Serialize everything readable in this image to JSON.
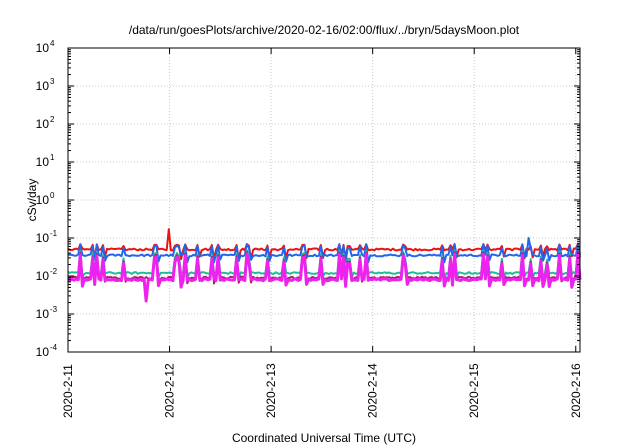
{
  "chart_data": {
    "type": "line",
    "title": "/data/run/goesPlots/archive/2020-02-16/02:00/flux/../bryn/5daysMoon.plot",
    "xlabel": "Coordinated Universal Time (UTC)",
    "ylabel": "cSv/day",
    "y_scale": "log",
    "ylim": [
      0.0001,
      10000
    ],
    "xlim": [
      "2020-02-11T00:00",
      "2020-02-16T01:00"
    ],
    "grid": true,
    "x_ticks": [
      "2020-2-11",
      "2020-2-12",
      "2020-2-13",
      "2020-2-14",
      "2020-2-15",
      "2020-2-16"
    ],
    "y_ticks": [
      {
        "base": "10",
        "exp": "-4",
        "value": 0.0001
      },
      {
        "base": "10",
        "exp": "-3",
        "value": 0.001
      },
      {
        "base": "10",
        "exp": "-2",
        "value": 0.01
      },
      {
        "base": "10",
        "exp": "-1",
        "value": 0.1
      },
      {
        "base": "10",
        "exp": "0",
        "value": 1
      },
      {
        "base": "10",
        "exp": "1",
        "value": 10
      },
      {
        "base": "10",
        "exp": "2",
        "value": 100
      },
      {
        "base": "10",
        "exp": "3",
        "value": 1000
      },
      {
        "base": "10",
        "exp": "4",
        "value": 10000
      }
    ],
    "series": [
      {
        "color": "#ee1111",
        "baseline": 0.05,
        "spike_peak": 0.07,
        "dip": 0.03,
        "width": 2
      },
      {
        "color": "#2266ee",
        "baseline": 0.035,
        "spike_peak": 0.07,
        "dip": 0.025,
        "width": 2
      },
      {
        "color": "#22bb99",
        "baseline": 0.012,
        "spike_peak": 0.05,
        "dip": 0.009,
        "width": 2
      },
      {
        "color": "#aa2266",
        "baseline": 0.009,
        "spike_peak": 0.045,
        "dip": 0.007,
        "width": 2
      },
      {
        "color": "#ee22ee",
        "baseline": 0.008,
        "spike_peak": 0.04,
        "dip": 0.0055,
        "width": 3
      }
    ],
    "notable_points": [
      {
        "x": "2020-02-11T18:40",
        "series_color": "#ee22ee",
        "value": 0.0022
      },
      {
        "x": "2020-02-11T23:50",
        "series_color": "#ee1111",
        "value": 0.17
      },
      {
        "x": "2020-02-15T12:40",
        "series_color": "#2266ee",
        "value": 0.1
      }
    ]
  }
}
